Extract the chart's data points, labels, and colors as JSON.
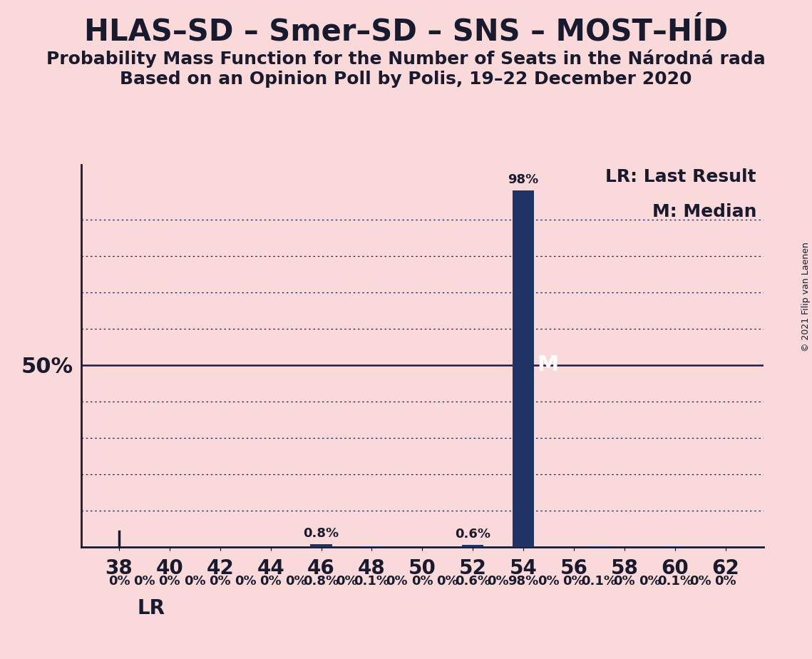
{
  "title1": "HLAS–SD – Smer–SD – SNS – MOST–HÍD",
  "title2": "Probability Mass Function for the Number of Seats in the Národná rada",
  "title3": "Based on an Opinion Poll by Polis, 19–22 December 2020",
  "copyright": "© 2021 Filip van Laenen",
  "background_color": "#f9d9d9",
  "bar_color": "#1f3464",
  "x_min": 38,
  "x_max": 62,
  "x_step": 2,
  "y_min": 0,
  "y_max": 1.0,
  "seats": [
    38,
    39,
    40,
    41,
    42,
    43,
    44,
    45,
    46,
    47,
    48,
    49,
    50,
    51,
    52,
    53,
    54,
    55,
    56,
    57,
    58,
    59,
    60,
    61,
    62
  ],
  "probabilities": [
    0,
    0,
    0,
    0,
    0,
    0,
    0,
    0,
    0.008,
    0,
    0.001,
    0,
    0,
    0,
    0.006,
    0,
    0.98,
    0,
    0,
    0.001,
    0,
    0,
    0.001,
    0,
    0
  ],
  "bar_labels": [
    "0%",
    "0%",
    "0%",
    "0%",
    "0%",
    "0%",
    "0%",
    "0%",
    "0.8%",
    "0%",
    "0.1%",
    "0%",
    "0%",
    "0%",
    "0.6%",
    "0%",
    "98%",
    "0%",
    "0%",
    "0.1%",
    "0%",
    "0%",
    "0.1%",
    "0%",
    "0%"
  ],
  "median": 54,
  "lr": 38,
  "lr_label": "LR",
  "median_label": "M",
  "legend_lr": "LR: Last Result",
  "legend_m": "M: Median",
  "grid_color": "#1a1a4e",
  "dotted_gridlines_y": [
    0.1,
    0.2,
    0.3,
    0.4,
    0.6,
    0.7,
    0.8,
    0.9
  ],
  "solid_gridline_y": 0.5,
  "text_color": "#1a1a2e",
  "title_fontsize": 30,
  "subtitle_fontsize": 18,
  "tick_fontsize": 20,
  "label_fontsize": 13,
  "legend_fontsize": 18,
  "ylabel_fontsize": 22
}
